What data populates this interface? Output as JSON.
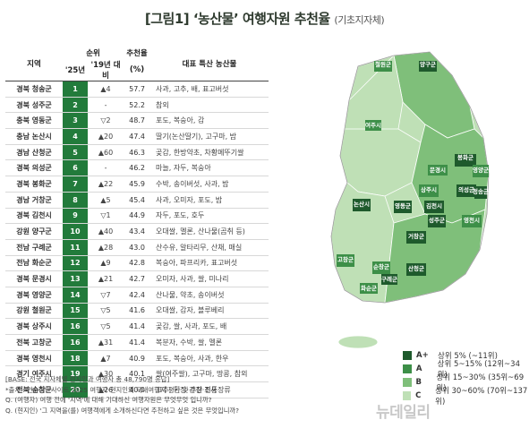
{
  "title": {
    "main": "[그림1] ‘농산물’ 여행자원 추천율",
    "sub": "(기초지자체)"
  },
  "table": {
    "headers": {
      "region": "지역",
      "rank_group": "순위",
      "rank_25": "'25년",
      "rank_change": "'19년 대비",
      "score": "추천율",
      "score_unit": "(%)",
      "products": "대표 특산 농산물"
    },
    "rows": [
      {
        "region": "경북 청송군",
        "rank": "1",
        "change": "▲4",
        "score": "57.7",
        "products": "사과, 고추, 배, 표고버섯"
      },
      {
        "region": "경북 성주군",
        "rank": "2",
        "change": "-",
        "score": "52.2",
        "products": "참외"
      },
      {
        "region": "충북 영동군",
        "rank": "3",
        "change": "▽2",
        "score": "48.7",
        "products": "포도, 복숭아, 감"
      },
      {
        "region": "충남 논산시",
        "rank": "4",
        "change": "▲20",
        "score": "47.4",
        "products": "딸기(논산딸기), 고구마, 밤"
      },
      {
        "region": "경남 산청군",
        "rank": "5",
        "change": "▲60",
        "score": "46.3",
        "products": "곶감, 한방약초, 차황메뚜기쌀"
      },
      {
        "region": "경북 의성군",
        "rank": "6",
        "change": "-",
        "score": "46.2",
        "products": "마늘, 자두, 복숭아"
      },
      {
        "region": "경북 봉화군",
        "rank": "7",
        "change": "▲22",
        "score": "45.9",
        "products": "수박, 송이버섯, 사과, 밤"
      },
      {
        "region": "경남 거창군",
        "rank": "8",
        "change": "▲5",
        "score": "45.4",
        "products": "사과, 오미자, 포도, 밤"
      },
      {
        "region": "경북 김천시",
        "rank": "9",
        "change": "▽1",
        "score": "44.9",
        "products": "자두, 포도, 호두"
      },
      {
        "region": "강원 양구군",
        "rank": "10",
        "change": "▲40",
        "score": "43.4",
        "products": "오대쌀, 멜론, 산나물(곰취 등)"
      },
      {
        "region": "전남 구례군",
        "rank": "11",
        "change": "▲28",
        "score": "43.0",
        "products": "산수유, 알타리무, 산채, 매실"
      },
      {
        "region": "전남 화순군",
        "rank": "12",
        "change": "▲9",
        "score": "42.8",
        "products": "복숭아, 파프리카, 표고버섯"
      },
      {
        "region": "경북 문경시",
        "rank": "13",
        "change": "▲21",
        "score": "42.7",
        "products": "오미자, 사과, 쌀, 미나리"
      },
      {
        "region": "경북 영양군",
        "rank": "14",
        "change": "▽7",
        "score": "42.4",
        "products": "산나물, 약초, 송이버섯"
      },
      {
        "region": "강원 철원군",
        "rank": "15",
        "change": "▽5",
        "score": "41.6",
        "products": "오대쌀, 감자, 블루베리"
      },
      {
        "region": "경북 상주시",
        "rank": "16",
        "change": "▽5",
        "score": "41.4",
        "products": "곶감, 쌀, 사과, 포도, 배"
      },
      {
        "region": "전북 고창군",
        "rank": "16",
        "change": "▲31",
        "score": "41.4",
        "products": "복분자, 수박, 쌀, 멜론"
      },
      {
        "region": "경북 영천시",
        "rank": "18",
        "change": "▲7",
        "score": "40.9",
        "products": "포도, 복숭아, 사과, 한우"
      },
      {
        "region": "경기 여주시",
        "rank": "19",
        "change": "▲30",
        "score": "40.1",
        "products": "쌀(여주쌀), 고구마, 땅콩, 참외"
      },
      {
        "region": "전북 순창군",
        "rank": "20",
        "change": "▲26",
        "score": "40.0",
        "products": "고추, 된장·간장·전통장류"
      }
    ]
  },
  "footnotes": [
    "[BASE: 전국 지자체별 현지인과 여행자 총 48,790명 응답]",
    "*출처 : 컨슈머인사이트 2025 여행자·현지인의 국내여행지 평가 및 추천 조사",
    "Q. (여행자) 여행 전에 '지역'에 대해 기대하신 여행자원은 무엇무엇 입니까?",
    "Q. (현지인) '그 지역을(를) 여행객에게 소개하신다면 추천하고 싶은 것은 무엇입니까?"
  ],
  "map": {
    "labels": [
      "철원군",
      "양구군",
      "여주시",
      "봉화군",
      "영양군",
      "문경시",
      "의성군",
      "청송군",
      "상주시",
      "논산시",
      "영동군",
      "김천시",
      "성주군",
      "영천시",
      "거창군",
      "고창군",
      "순창군",
      "산청군",
      "화순군",
      "구례군"
    ]
  },
  "legend": {
    "items": [
      {
        "grade": "A+",
        "text": "상위 5% (~11위)",
        "color": "#1e5a2c"
      },
      {
        "grade": "A",
        "text": "상위 5~15% (12위~34위)",
        "color": "#3d8f48"
      },
      {
        "grade": "B",
        "text": "상위 15~30% (35위~69위)",
        "color": "#7fbf7a"
      },
      {
        "grade": "C",
        "text": "상위 30~60% (70위~137위)",
        "color": "#bfe0b6"
      }
    ]
  },
  "watermark": "뉴데일리",
  "chart_data": {
    "type": "table",
    "title": "[그림1] ‘농산물’ 여행자원 추천율",
    "subtitle": "(기초지자체)",
    "columns": [
      "지역",
      "'25년",
      "'19년 대비",
      "추천율 (%)",
      "대표 특산 농산물"
    ],
    "categories": [
      "경북 청송군",
      "경북 성주군",
      "충북 영동군",
      "충남 논산시",
      "경남 산청군",
      "경북 의성군",
      "경북 봉화군",
      "경남 거창군",
      "경북 김천시",
      "강원 양구군",
      "전남 구례군",
      "전남 화순군",
      "경북 문경시",
      "경북 영양군",
      "강원 철원군",
      "경북 상주시",
      "전북 고창군",
      "경북 영천시",
      "경기 여주시",
      "전북 순창군"
    ],
    "values": [
      57.7,
      52.2,
      48.7,
      47.4,
      46.3,
      46.2,
      45.9,
      45.4,
      44.9,
      43.4,
      43.0,
      42.8,
      42.7,
      42.4,
      41.6,
      41.4,
      41.4,
      40.9,
      40.1,
      40.0
    ],
    "ranks": [
      1,
      2,
      3,
      4,
      5,
      6,
      7,
      8,
      9,
      10,
      11,
      12,
      13,
      14,
      15,
      16,
      16,
      18,
      19,
      20
    ]
  }
}
